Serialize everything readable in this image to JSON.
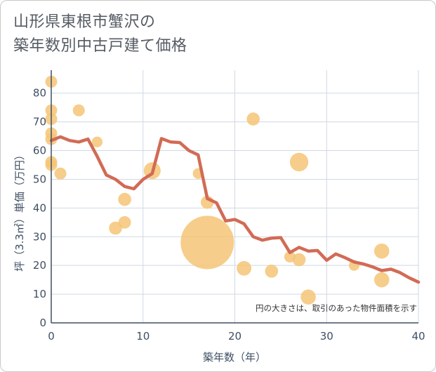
{
  "chart_data": {
    "type": "scatter",
    "title_lines": [
      "山形県東根市蟹沢の",
      "築年数別中古戸建て価格"
    ],
    "xlabel": "築年数（年）",
    "ylabel": "坪（3.3㎡）単価（万円）",
    "xlim": [
      0,
      40
    ],
    "ylim": [
      0,
      88
    ],
    "xticks": [
      0,
      10,
      20,
      30,
      40
    ],
    "yticks": [
      0,
      10,
      20,
      30,
      40,
      50,
      60,
      70,
      80
    ],
    "grid": true,
    "note": "円の大きさは、取引のあった物件面積を示す",
    "colors": {
      "bubble": "#f5c475",
      "line": "#d26b55",
      "grid": "#cfd9e4",
      "axis": "#3f4f63"
    },
    "points": [
      {
        "x": 0,
        "y": 84,
        "size": 1
      },
      {
        "x": 0,
        "y": 74,
        "size": 1
      },
      {
        "x": 0,
        "y": 71,
        "size": 1
      },
      {
        "x": 0,
        "y": 66,
        "size": 1
      },
      {
        "x": 0,
        "y": 64,
        "size": 1
      },
      {
        "x": 0,
        "y": 56,
        "size": 1
      },
      {
        "x": 0,
        "y": 55,
        "size": 1
      },
      {
        "x": 1,
        "y": 52,
        "size": 1
      },
      {
        "x": 3,
        "y": 74,
        "size": 1
      },
      {
        "x": 5,
        "y": 63,
        "size": 0.8
      },
      {
        "x": 7,
        "y": 33,
        "size": 1.2
      },
      {
        "x": 8,
        "y": 43,
        "size": 1.2
      },
      {
        "x": 8,
        "y": 35,
        "size": 1.1
      },
      {
        "x": 11,
        "y": 53,
        "size": 2
      },
      {
        "x": 16,
        "y": 52,
        "size": 0.8
      },
      {
        "x": 17,
        "y": 42,
        "size": 1.2
      },
      {
        "x": 17,
        "y": 28,
        "size": 20
      },
      {
        "x": 21,
        "y": 19,
        "size": 1.5
      },
      {
        "x": 22,
        "y": 71,
        "size": 1.2
      },
      {
        "x": 24,
        "y": 18,
        "size": 1.2
      },
      {
        "x": 26,
        "y": 23,
        "size": 0.9
      },
      {
        "x": 27,
        "y": 56,
        "size": 2.4
      },
      {
        "x": 27,
        "y": 22,
        "size": 1.2
      },
      {
        "x": 28,
        "y": 9,
        "size": 1.6
      },
      {
        "x": 33,
        "y": 20,
        "size": 0.8
      },
      {
        "x": 36,
        "y": 25,
        "size": 1.6
      },
      {
        "x": 36,
        "y": 15,
        "size": 1.6
      }
    ],
    "trend": {
      "x": [
        0,
        1,
        2,
        3,
        4,
        5,
        6,
        7,
        8,
        9,
        10,
        11,
        12,
        13,
        14,
        15,
        16,
        17,
        18,
        19,
        20,
        21,
        22,
        23,
        24,
        25,
        26,
        27,
        28,
        29,
        30,
        31,
        32,
        33,
        34,
        35,
        36,
        37,
        38,
        39,
        40
      ],
      "y": [
        63.5,
        64.8,
        63.5,
        63,
        64,
        58,
        51.5,
        50,
        47.5,
        46.7,
        50,
        52,
        64.2,
        63,
        62.8,
        60,
        58.5,
        43.3,
        41.8,
        35.5,
        36,
        34.5,
        30,
        28.8,
        29.5,
        29.7,
        24.5,
        26.3,
        25,
        25.2,
        21.8,
        24,
        22.7,
        21.2,
        20.5,
        19.5,
        18.2,
        18.7,
        17.5,
        15.7,
        14.2
      ]
    }
  }
}
